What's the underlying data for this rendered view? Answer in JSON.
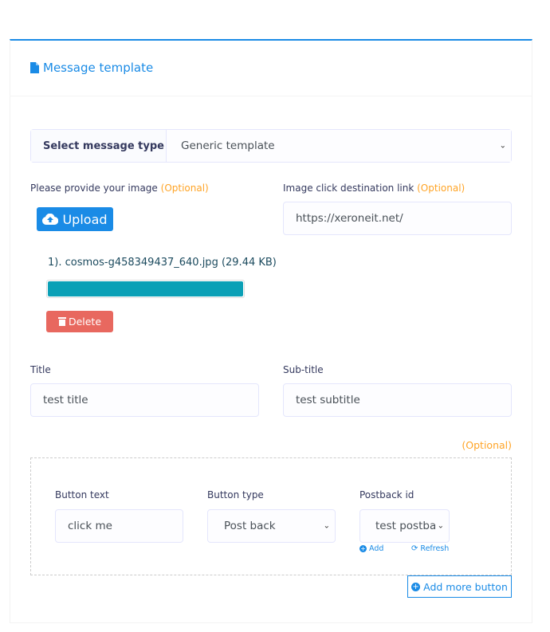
{
  "header": {
    "title": "Message template",
    "icon": "file-icon"
  },
  "message_type": {
    "label": "Select message type",
    "value": "Generic template"
  },
  "image": {
    "label": "Please provide your image",
    "optional": "(Optional)",
    "upload_label": "Upload",
    "file": "1). cosmos-g458349437_640.jpg (29.44 KB)",
    "progress_percent": 100,
    "delete_label": "Delete"
  },
  "link": {
    "label": "Image click destination link",
    "optional": "(Optional)",
    "value": "https://xeroneit.net/"
  },
  "title_field": {
    "label": "Title",
    "value": "test title"
  },
  "subtitle_field": {
    "label": "Sub-title",
    "value": "test subtitle"
  },
  "buttons": {
    "optional": "(Optional)",
    "text_label": "Button text",
    "text_value": "click me",
    "type_label": "Button type",
    "type_value": "Post back",
    "postback_label": "Postback id",
    "postback_value": "test postback",
    "add_label": "Add",
    "refresh_label": "Refresh",
    "add_more_label": "Add more button"
  },
  "colors": {
    "primary": "#1a8be6",
    "warning": "#ffa426",
    "danger": "#e8685f",
    "progress": "#0ba0b6"
  }
}
